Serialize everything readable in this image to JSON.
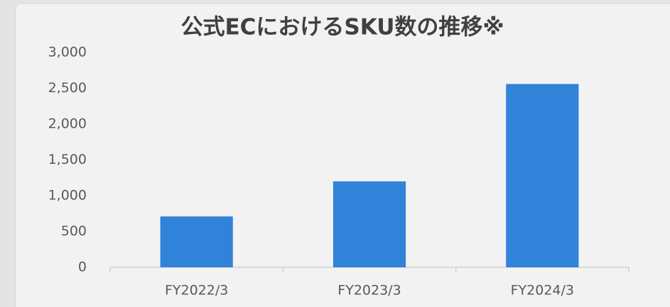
{
  "chart_data": {
    "type": "bar",
    "title": "公式ECにおけるSKU数の推移※",
    "categories": [
      "FY2022/3",
      "FY2023/3",
      "FY2024/3"
    ],
    "values": [
      710,
      1200,
      2560
    ],
    "color": "#3182d9",
    "ylim": [
      0,
      3000
    ],
    "yticks": [
      0,
      500,
      {
        "value": 1000,
        "label": "1,000"
      },
      {
        "value": 1500,
        "label": "1,500"
      },
      {
        "value": 2000,
        "label": "2,000"
      },
      {
        "value": 2500,
        "label": "2,500"
      },
      {
        "value": 3000,
        "label": "3,000"
      }
    ],
    "grid": false
  }
}
